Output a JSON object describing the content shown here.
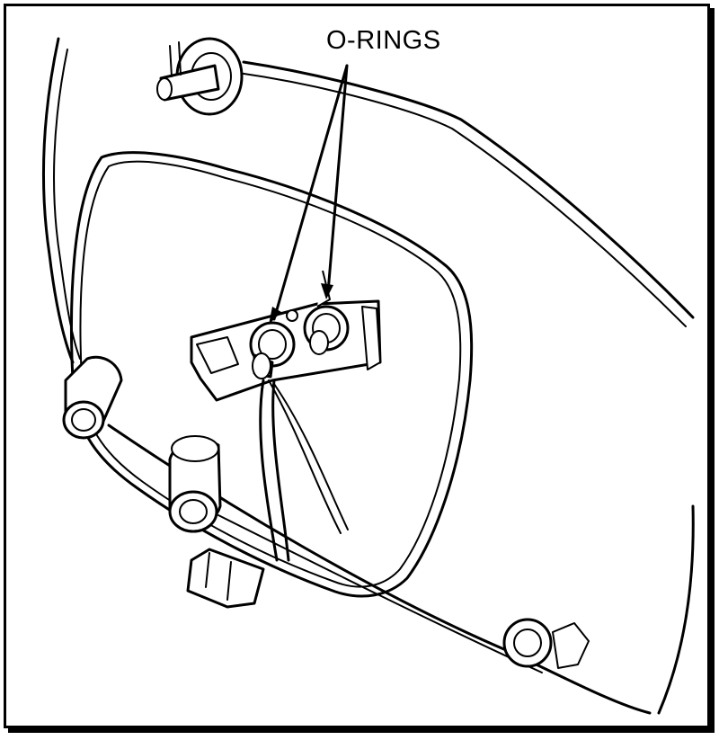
{
  "figure": {
    "callout_label": "O-RINGS",
    "colors": {
      "line": "#000000",
      "background": "#ffffff"
    }
  }
}
